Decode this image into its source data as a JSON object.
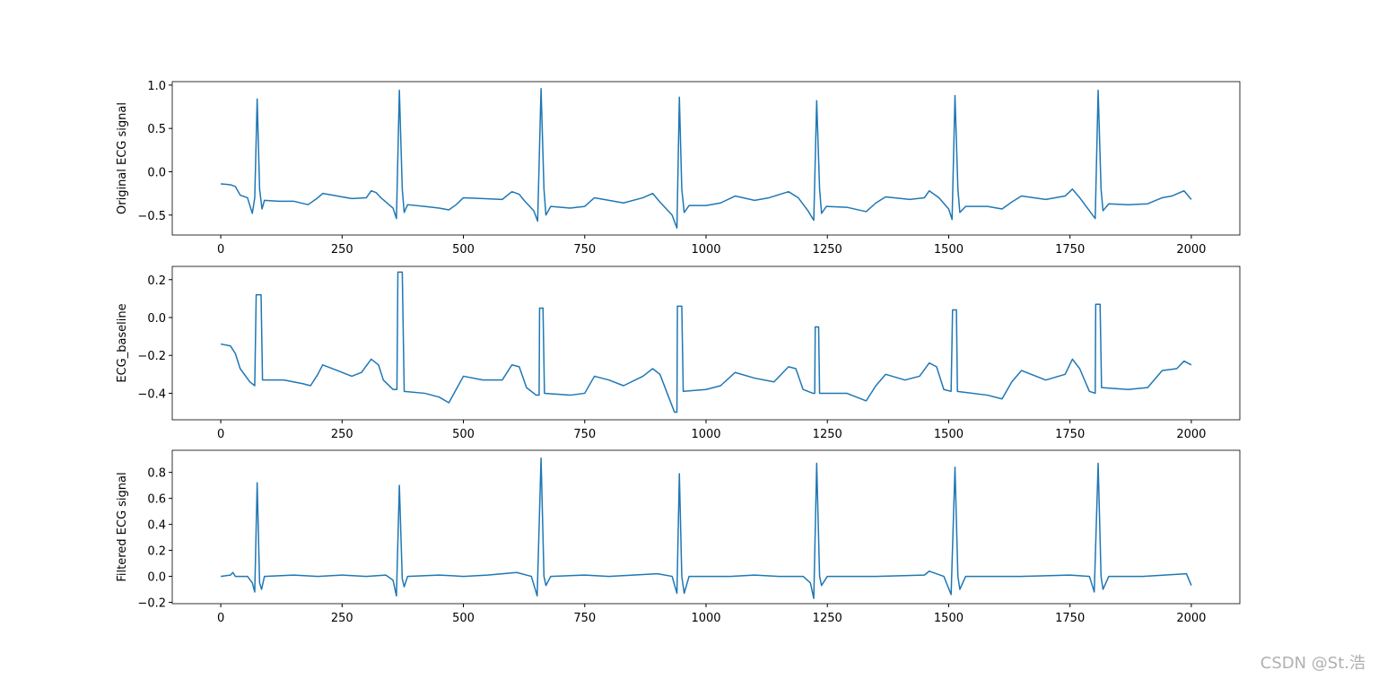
{
  "chart_data": [
    {
      "type": "line",
      "ylabel": "Original ECG signal",
      "color": "#1f77b4",
      "xlim": [
        -100,
        2100
      ],
      "ylim": [
        -0.73,
        1.04
      ],
      "xticks": [
        0,
        250,
        500,
        750,
        1000,
        1250,
        1500,
        1750,
        2000
      ],
      "yticks": [
        {
          "value": -0.5,
          "label": "−0.5"
        },
        {
          "value": 0,
          "label": "0.0"
        },
        0.5,
        {
          "value": 1,
          "label": "1.0"
        }
      ],
      "x": [
        0,
        20,
        30,
        40,
        55,
        65,
        70,
        75,
        80,
        85,
        90,
        120,
        150,
        180,
        200,
        210,
        240,
        270,
        300,
        310,
        320,
        330,
        355,
        362,
        368,
        374,
        378,
        385,
        420,
        450,
        470,
        485,
        500,
        540,
        580,
        600,
        615,
        625,
        645,
        653,
        660,
        666,
        670,
        680,
        720,
        750,
        770,
        800,
        830,
        870,
        890,
        905,
        930,
        940,
        945,
        950,
        955,
        965,
        1000,
        1030,
        1060,
        1100,
        1130,
        1170,
        1190,
        1210,
        1222,
        1228,
        1234,
        1238,
        1248,
        1290,
        1330,
        1350,
        1370,
        1420,
        1450,
        1460,
        1480,
        1500,
        1507,
        1513,
        1519,
        1523,
        1535,
        1580,
        1610,
        1630,
        1650,
        1700,
        1740,
        1755,
        1770,
        1790,
        1802,
        1808,
        1814,
        1818,
        1830,
        1870,
        1910,
        1940,
        1960,
        1985,
        2000
      ],
      "values": [
        -0.14,
        -0.15,
        -0.17,
        -0.27,
        -0.3,
        -0.48,
        -0.3,
        0.84,
        -0.2,
        -0.43,
        -0.33,
        -0.34,
        -0.34,
        -0.38,
        -0.3,
        -0.25,
        -0.28,
        -0.31,
        -0.3,
        -0.22,
        -0.24,
        -0.3,
        -0.42,
        -0.54,
        0.94,
        -0.2,
        -0.47,
        -0.38,
        -0.4,
        -0.42,
        -0.44,
        -0.38,
        -0.3,
        -0.31,
        -0.32,
        -0.23,
        -0.26,
        -0.33,
        -0.45,
        -0.57,
        0.96,
        -0.2,
        -0.5,
        -0.4,
        -0.42,
        -0.4,
        -0.3,
        -0.33,
        -0.36,
        -0.3,
        -0.25,
        -0.35,
        -0.5,
        -0.65,
        0.86,
        -0.2,
        -0.47,
        -0.39,
        -0.39,
        -0.36,
        -0.28,
        -0.33,
        -0.3,
        -0.23,
        -0.3,
        -0.45,
        -0.56,
        0.82,
        -0.2,
        -0.48,
        -0.4,
        -0.41,
        -0.46,
        -0.36,
        -0.29,
        -0.32,
        -0.3,
        -0.22,
        -0.3,
        -0.43,
        -0.55,
        0.88,
        -0.2,
        -0.47,
        -0.4,
        -0.4,
        -0.43,
        -0.35,
        -0.28,
        -0.32,
        -0.28,
        -0.2,
        -0.3,
        -0.45,
        -0.54,
        0.94,
        -0.2,
        -0.45,
        -0.37,
        -0.38,
        -0.37,
        -0.3,
        -0.28,
        -0.22,
        -0.32
      ]
    },
    {
      "type": "line",
      "ylabel": "ECG_baseline",
      "color": "#1f77b4",
      "xlim": [
        -100,
        2100
      ],
      "ylim": [
        -0.54,
        0.27
      ],
      "xticks": [
        0,
        250,
        500,
        750,
        1000,
        1250,
        1500,
        1750,
        2000
      ],
      "yticks": [
        {
          "value": -0.4,
          "label": "−0.4"
        },
        {
          "value": -0.2,
          "label": "−0.2"
        },
        {
          "value": 0,
          "label": "0.0"
        },
        0.2
      ],
      "x": [
        0,
        20,
        30,
        40,
        60,
        70,
        73,
        83,
        86,
        130,
        170,
        185,
        200,
        210,
        240,
        270,
        290,
        310,
        325,
        335,
        355,
        363,
        365,
        374,
        378,
        420,
        450,
        470,
        485,
        500,
        540,
        580,
        600,
        615,
        630,
        650,
        656,
        657,
        664,
        667,
        720,
        750,
        770,
        800,
        830,
        870,
        890,
        905,
        920,
        935,
        940,
        941,
        950,
        953,
        1000,
        1030,
        1060,
        1100,
        1140,
        1170,
        1185,
        1200,
        1220,
        1224,
        1225,
        1232,
        1234,
        1290,
        1330,
        1350,
        1370,
        1410,
        1440,
        1460,
        1475,
        1490,
        1505,
        1508,
        1516,
        1518,
        1580,
        1610,
        1630,
        1650,
        1700,
        1740,
        1755,
        1770,
        1790,
        1802,
        1803,
        1812,
        1815,
        1870,
        1910,
        1940,
        1970,
        1985,
        2000
      ],
      "values": [
        -0.14,
        -0.15,
        -0.19,
        -0.27,
        -0.34,
        -0.36,
        0.12,
        0.12,
        -0.33,
        -0.33,
        -0.35,
        -0.36,
        -0.3,
        -0.25,
        -0.28,
        -0.31,
        -0.29,
        -0.22,
        -0.25,
        -0.33,
        -0.38,
        -0.38,
        0.24,
        0.24,
        -0.39,
        -0.4,
        -0.42,
        -0.45,
        -0.38,
        -0.31,
        -0.33,
        -0.33,
        -0.25,
        -0.26,
        -0.37,
        -0.41,
        -0.41,
        0.05,
        0.05,
        -0.4,
        -0.41,
        -0.4,
        -0.31,
        -0.33,
        -0.36,
        -0.31,
        -0.27,
        -0.3,
        -0.4,
        -0.5,
        -0.5,
        0.06,
        0.06,
        -0.39,
        -0.38,
        -0.36,
        -0.29,
        -0.32,
        -0.34,
        -0.26,
        -0.27,
        -0.38,
        -0.4,
        -0.4,
        -0.05,
        -0.05,
        -0.4,
        -0.4,
        -0.44,
        -0.36,
        -0.3,
        -0.33,
        -0.31,
        -0.24,
        -0.26,
        -0.38,
        -0.39,
        0.04,
        0.04,
        -0.39,
        -0.41,
        -0.43,
        -0.34,
        -0.28,
        -0.33,
        -0.3,
        -0.22,
        -0.27,
        -0.39,
        -0.4,
        0.07,
        0.07,
        -0.37,
        -0.38,
        -0.37,
        -0.28,
        -0.27,
        -0.23,
        -0.25
      ]
    },
    {
      "type": "line",
      "ylabel": "Filtered ECG signal",
      "color": "#1f77b4",
      "xlim": [
        -100,
        2100
      ],
      "ylim": [
        -0.21,
        0.97
      ],
      "xticks": [
        0,
        250,
        500,
        750,
        1000,
        1250,
        1500,
        1750,
        2000
      ],
      "yticks": [
        {
          "value": -0.2,
          "label": "−0.2"
        },
        {
          "value": 0,
          "label": "0.0"
        },
        0.2,
        0.4,
        0.6,
        0.8
      ],
      "x": [
        0,
        20,
        25,
        30,
        55,
        65,
        70,
        75,
        80,
        84,
        90,
        150,
        200,
        250,
        300,
        340,
        355,
        362,
        368,
        374,
        378,
        385,
        450,
        500,
        550,
        610,
        640,
        652,
        660,
        666,
        670,
        680,
        750,
        800,
        850,
        900,
        930,
        940,
        945,
        950,
        955,
        965,
        1050,
        1100,
        1150,
        1200,
        1215,
        1222,
        1228,
        1234,
        1238,
        1250,
        1350,
        1450,
        1460,
        1490,
        1505,
        1513,
        1519,
        1523,
        1535,
        1650,
        1750,
        1790,
        1800,
        1808,
        1814,
        1818,
        1830,
        1900,
        1990,
        2000
      ],
      "values": [
        0,
        0.01,
        0.03,
        0,
        0,
        -0.05,
        -0.12,
        0.72,
        -0.05,
        -0.1,
        0,
        0.01,
        0,
        0.01,
        0,
        0.01,
        -0.03,
        -0.15,
        0.7,
        -0.02,
        -0.08,
        0,
        0.01,
        0,
        0.01,
        0.03,
        0,
        -0.15,
        0.91,
        0,
        -0.07,
        0,
        0.01,
        0,
        0.01,
        0.02,
        0,
        -0.13,
        0.79,
        0,
        -0.13,
        0,
        0,
        0.01,
        0,
        0,
        -0.05,
        -0.17,
        0.87,
        0,
        -0.07,
        0,
        0,
        0.01,
        0.04,
        0,
        -0.14,
        0.84,
        0,
        -0.1,
        0,
        0,
        0.01,
        0,
        -0.12,
        0.87,
        0,
        -0.1,
        0,
        0,
        0.02,
        -0.07
      ]
    }
  ],
  "watermark": "CSDN @St.浩"
}
